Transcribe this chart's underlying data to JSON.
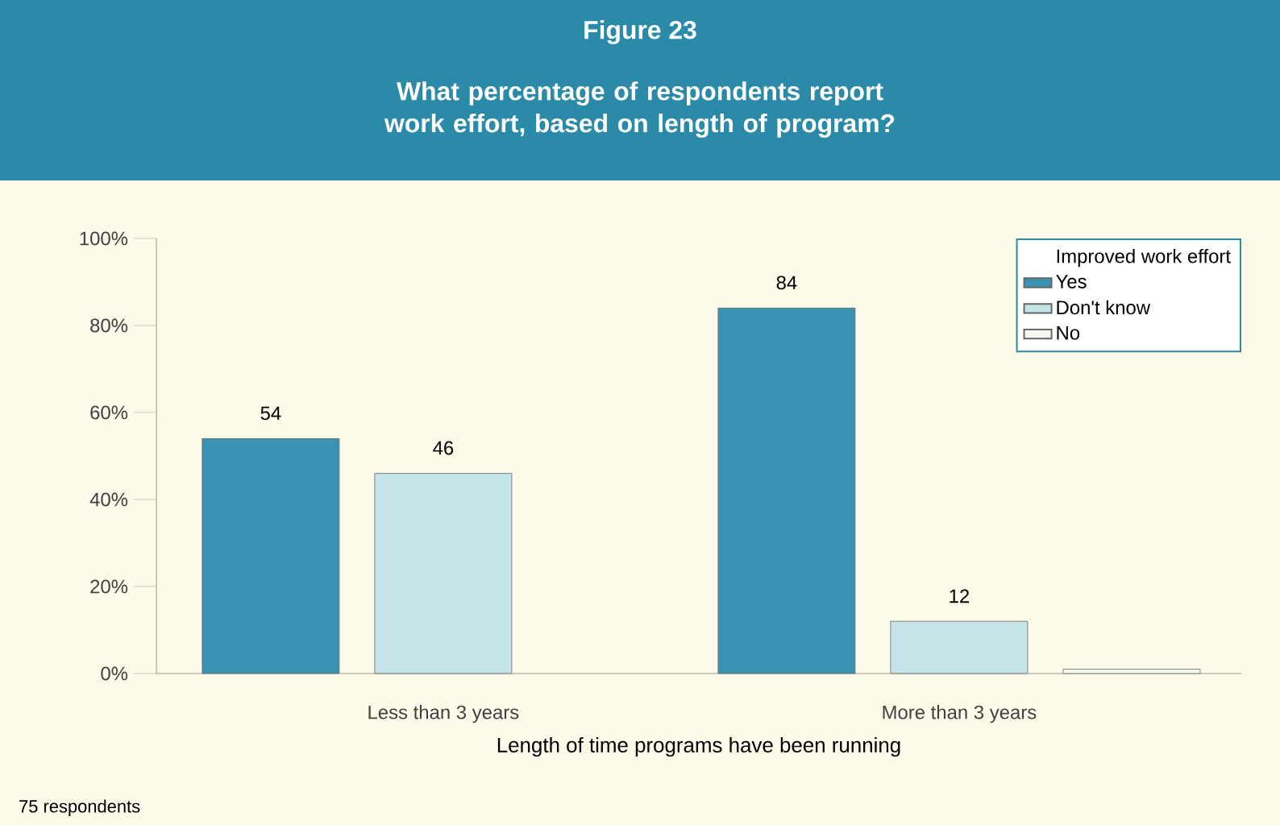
{
  "chart_data": {
    "type": "bar",
    "title": "Figure 23",
    "subtitle": "What percentage of respondents report work effort, based on length of program?",
    "xlabel": "Length of time programs have been running",
    "legend_title": "Improved work effort",
    "categories": [
      "Less than 3 years",
      "More than 3 years"
    ],
    "series": [
      {
        "name": "Yes",
        "color": "#3a93b3",
        "values": [
          54,
          84
        ],
        "value_labels": [
          "54",
          "84"
        ]
      },
      {
        "name": "Don't know",
        "color": "#c4e4e8",
        "values": [
          46,
          12
        ],
        "value_labels": [
          "46",
          "12"
        ]
      },
      {
        "name": "No",
        "color": "#f4f8ef",
        "values": [
          null,
          1
        ],
        "value_labels": [
          null,
          null
        ]
      }
    ],
    "ylim": [
      0,
      100
    ],
    "yticks": [
      {
        "value": 0,
        "label": "0%"
      },
      {
        "value": 20,
        "label": "20%"
      },
      {
        "value": 40,
        "label": "40%"
      },
      {
        "value": 60,
        "label": "60%"
      },
      {
        "value": 80,
        "label": "80%"
      },
      {
        "value": 100,
        "label": "100%"
      }
    ],
    "legend": "top right",
    "grid": false,
    "annotations": [
      "75 respondents"
    ]
  }
}
